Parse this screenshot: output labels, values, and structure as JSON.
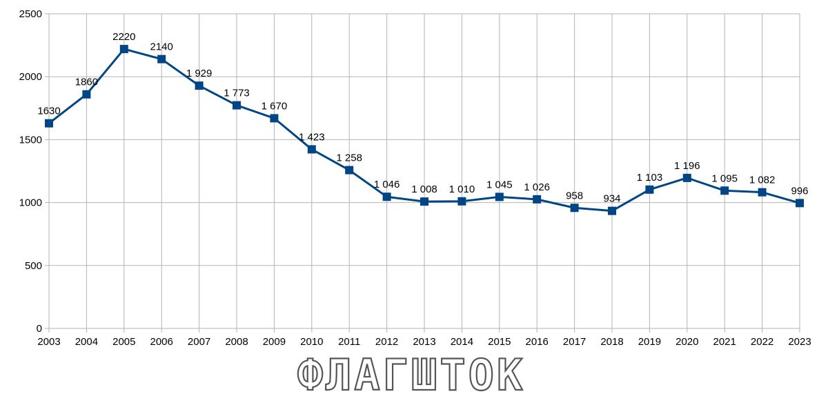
{
  "chart_data": {
    "type": "line",
    "title": "",
    "xlabel": "",
    "ylabel": "",
    "categories": [
      "2003",
      "2004",
      "2005",
      "2006",
      "2007",
      "2008",
      "2009",
      "2010",
      "2011",
      "2012",
      "2013",
      "2014",
      "2015",
      "2016",
      "2017",
      "2018",
      "2019",
      "2020",
      "2021",
      "2022",
      "2023"
    ],
    "series": [
      {
        "values": [
          1630,
          1860,
          2220,
          2140,
          1929,
          1773,
          1670,
          1423,
          1258,
          1046,
          1008,
          1010,
          1045,
          1026,
          958,
          934,
          1103,
          1196,
          1095,
          1082,
          996
        ],
        "labels": [
          "1630",
          "1860",
          "2220",
          "2140",
          "1 929",
          "1 773",
          "1 670",
          "1 423",
          "1 258",
          "1 046",
          "1 008",
          "1 010",
          "1 045",
          "1 026",
          "958",
          "934",
          "1 103",
          "1 196",
          "1 095",
          "1 082",
          "996"
        ],
        "color": "#004586",
        "marker": "square"
      }
    ],
    "ylim": [
      0,
      2500
    ],
    "yticks": [
      "0",
      "500",
      "1000",
      "1500",
      "2000",
      "2500"
    ],
    "grid": true,
    "legend": "none"
  },
  "watermark": {
    "text": "ФЛАГШТОК"
  }
}
